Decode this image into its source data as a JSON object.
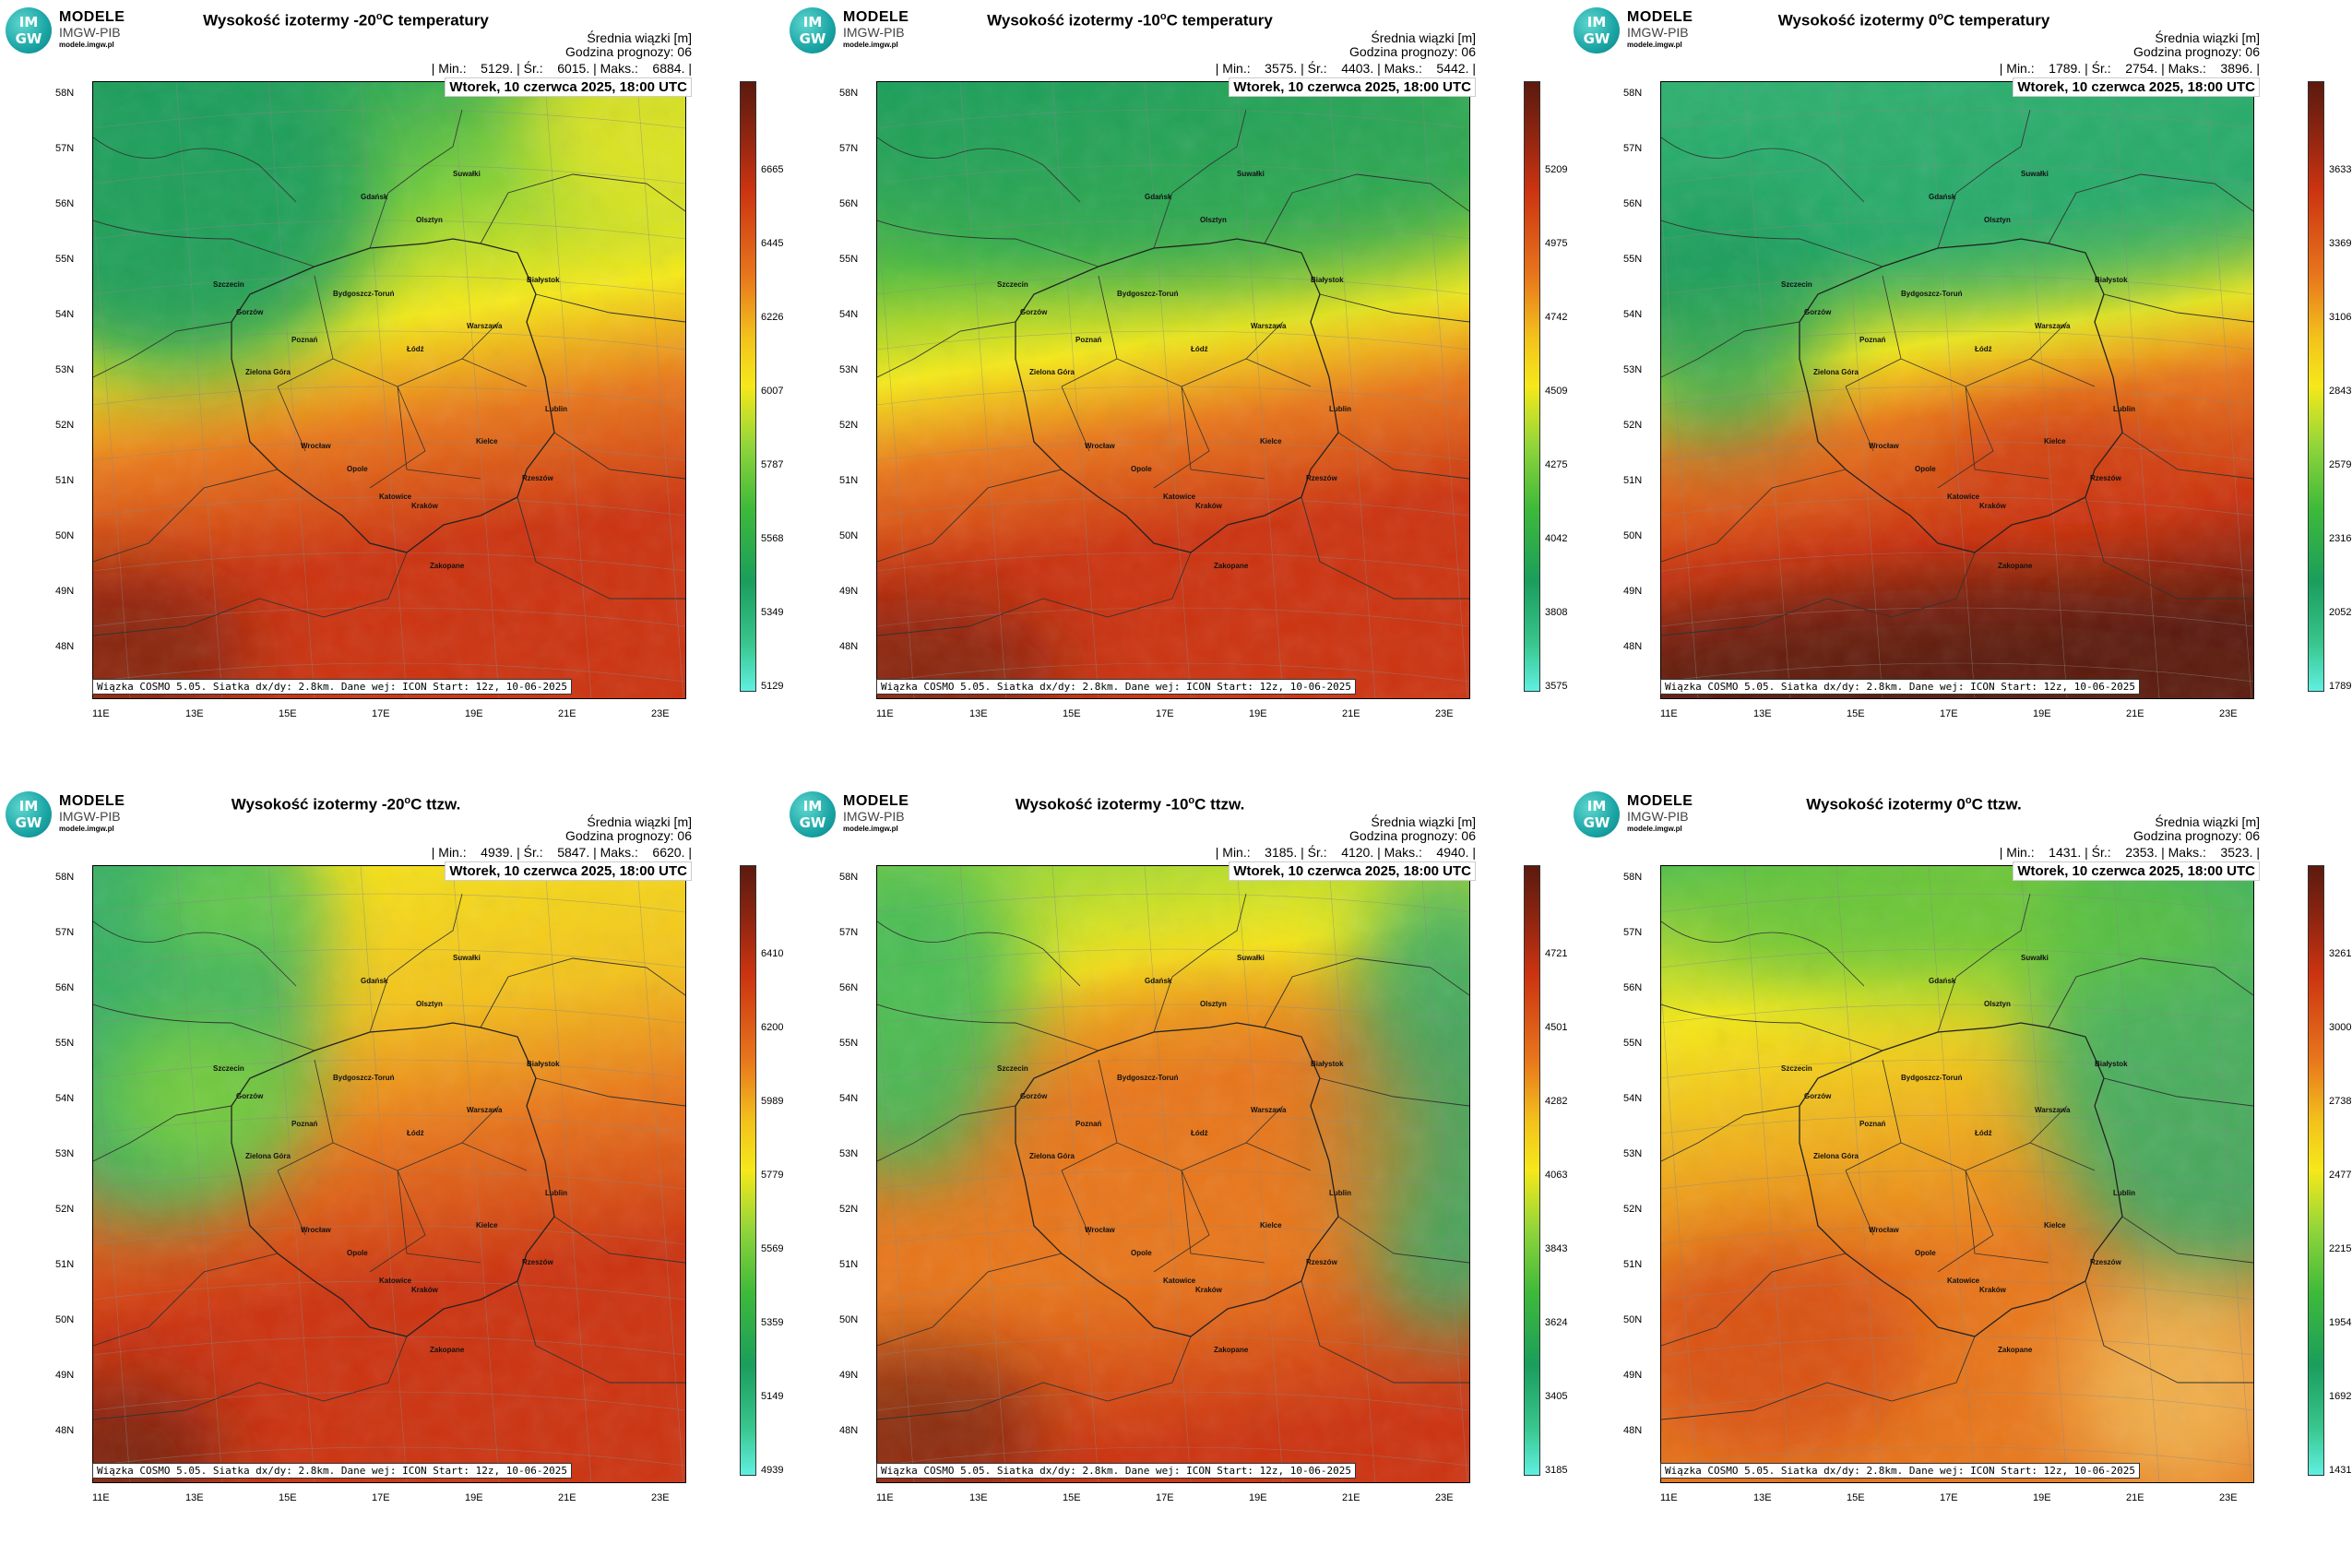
{
  "logo": {
    "line1": "MODELE",
    "line2": "IMGW-PIB",
    "line3": "modele.imgw.pl",
    "badge_top": "IM",
    "badge_bottom": "GW"
  },
  "common": {
    "info_line1": "Średnia wiązki [m]",
    "info_line2": "Godzina prognozy: 06",
    "date": "Wtorek, 10 czerwca 2025, 18:00 UTC",
    "credit": "Wiązka COSMO 5.05. Siatka dx/dy: 2.8km. Dane wej: ICON Start: 12z, 10-06-2025",
    "lat_labels": [
      "58N",
      "57N",
      "56N",
      "55N",
      "54N",
      "53N",
      "52N",
      "51N",
      "50N",
      "49N",
      "48N"
    ],
    "lon_labels": [
      "11E",
      "13E",
      "15E",
      "17E",
      "19E",
      "21E",
      "23E"
    ],
    "cities": [
      "Gdańsk",
      "Olsztyn",
      "Suwałki",
      "Białystok",
      "Szczecin",
      "Bydgoszcz-Toruń",
      "Gorzów",
      "Poznań",
      "Warszawa",
      "Łódź",
      "Zielona Góra",
      "Lublin",
      "Wrocław",
      "Kielce",
      "Opole",
      "Rzeszów",
      "Katowice",
      "Kraków",
      "Zakopane"
    ],
    "colors": {
      "low": "#5ef0e0",
      "green": "#1a9e5c",
      "yellow": "#f5e91a",
      "orange": "#e8771c",
      "red": "#cc3411",
      "dark": "#5c1a0f"
    }
  },
  "panels": [
    {
      "title_pre": "Wysokość izotermy -20",
      "title_post": "C temperatury",
      "title_sup": "o",
      "stats": "| Min.:    5129. | Śr.:    6015. | Maks.:    6884. |",
      "cbar_ticks": [
        "6665",
        "6445",
        "6226",
        "6007",
        "5787",
        "5568",
        "5349",
        "5129"
      ],
      "pattern": "t20"
    },
    {
      "title_pre": "Wysokość izotermy -10",
      "title_post": "C temperatury",
      "title_sup": "o",
      "stats": "| Min.:    3575. | Śr.:    4403. | Maks.:    5442. |",
      "cbar_ticks": [
        "5209",
        "4975",
        "4742",
        "4509",
        "4275",
        "4042",
        "3808",
        "3575"
      ],
      "pattern": "t10"
    },
    {
      "title_pre": "Wysokość izotermy 0",
      "title_post": "C temperatury",
      "title_sup": "o",
      "stats": "| Min.:    1789. | Śr.:    2754. | Maks.:    3896. |",
      "cbar_ticks": [
        "3633",
        "3369",
        "3106",
        "2843",
        "2579",
        "2316",
        "2052",
        "1789"
      ],
      "pattern": "t0"
    },
    {
      "title_pre": "Wysokość izotermy -20",
      "title_post": "C ttzw.",
      "title_sup": "o",
      "stats": "| Min.:    4939. | Śr.:    5847. | Maks.:    6620. |",
      "cbar_ticks": [
        "6410",
        "6200",
        "5989",
        "5779",
        "5569",
        "5359",
        "5149",
        "4939"
      ],
      "pattern": "w20"
    },
    {
      "title_pre": "Wysokość izotermy -10",
      "title_post": "C ttzw.",
      "title_sup": "o",
      "stats": "| Min.:    3185. | Śr.:    4120. | Maks.:    4940. |",
      "cbar_ticks": [
        "4721",
        "4501",
        "4282",
        "4063",
        "3843",
        "3624",
        "3405",
        "3185"
      ],
      "pattern": "w10"
    },
    {
      "title_pre": "Wysokość izotermy 0",
      "title_post": "C ttzw.",
      "title_sup": "o",
      "stats": "| Min.:    1431. | Śr.:    2353. | Maks.:    3523. |",
      "cbar_ticks": [
        "3261",
        "3000",
        "2738",
        "2477",
        "2215",
        "1954",
        "1692",
        "1431"
      ],
      "pattern": "w0"
    }
  ]
}
